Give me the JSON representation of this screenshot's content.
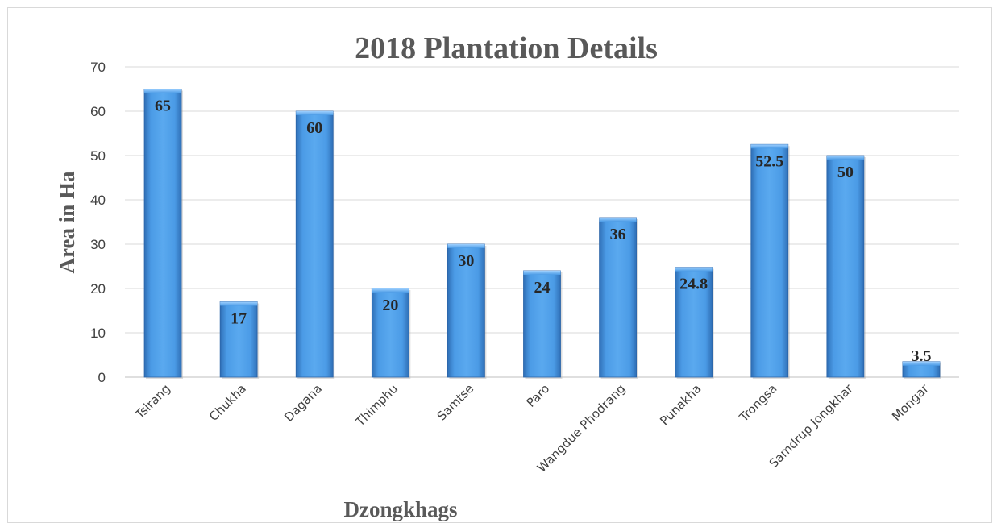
{
  "chart_data": {
    "type": "bar",
    "title": "2018 Plantation Details",
    "xlabel": "Dzongkhags",
    "ylabel": "Area in Ha",
    "ylim": [
      0,
      70
    ],
    "yticks": [
      0,
      10,
      20,
      30,
      40,
      50,
      60,
      70
    ],
    "grid": true,
    "legend": "none",
    "bar_color": "#3a87d8",
    "categories": [
      "Tsirang",
      "Chukha",
      "Dagana",
      "Thimphu",
      "Samtse",
      "Paro",
      "Wangdue Phodrang",
      "Punakha",
      "Trongsa",
      "Samdrup Jongkhar",
      "Mongar"
    ],
    "values": [
      65,
      17,
      60,
      20,
      30,
      24,
      36,
      24.8,
      52.5,
      50,
      3.5
    ],
    "data_labels": [
      "65",
      "17",
      "60",
      "20",
      "30",
      "24",
      "36",
      "24.8",
      "52.5",
      "50",
      "3.5"
    ]
  }
}
